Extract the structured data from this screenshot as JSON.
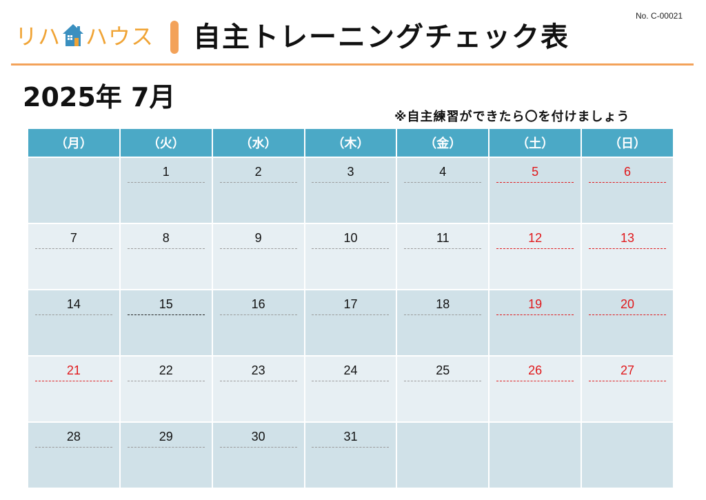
{
  "doc_number": "No. C-00021",
  "logo": {
    "text_left": "リハ",
    "text_right": "ハウス"
  },
  "title": "自主トレーニングチェック表",
  "month_label": "2025年 7月",
  "note": "※自主練習ができたら〇を付けましょう",
  "colors": {
    "accent": "#f3a259",
    "header": "#4ba9c6",
    "holiday": "#e0181b"
  },
  "weekdays": [
    "（月）",
    "（火）",
    "（水）",
    "（木）",
    "（金）",
    "（土）",
    "（日）"
  ],
  "weeks": [
    [
      null,
      "1",
      "2",
      "3",
      "4",
      "5",
      "6"
    ],
    [
      "7",
      "8",
      "9",
      "10",
      "11",
      "12",
      "13"
    ],
    [
      "14",
      "15",
      "16",
      "17",
      "18",
      "19",
      "20"
    ],
    [
      "21",
      "22",
      "23",
      "24",
      "25",
      "26",
      "27"
    ],
    [
      "28",
      "29",
      "30",
      "31",
      null,
      null,
      null
    ]
  ],
  "holidays": [
    "5",
    "6",
    "12",
    "13",
    "19",
    "20",
    "21",
    "26",
    "27"
  ]
}
